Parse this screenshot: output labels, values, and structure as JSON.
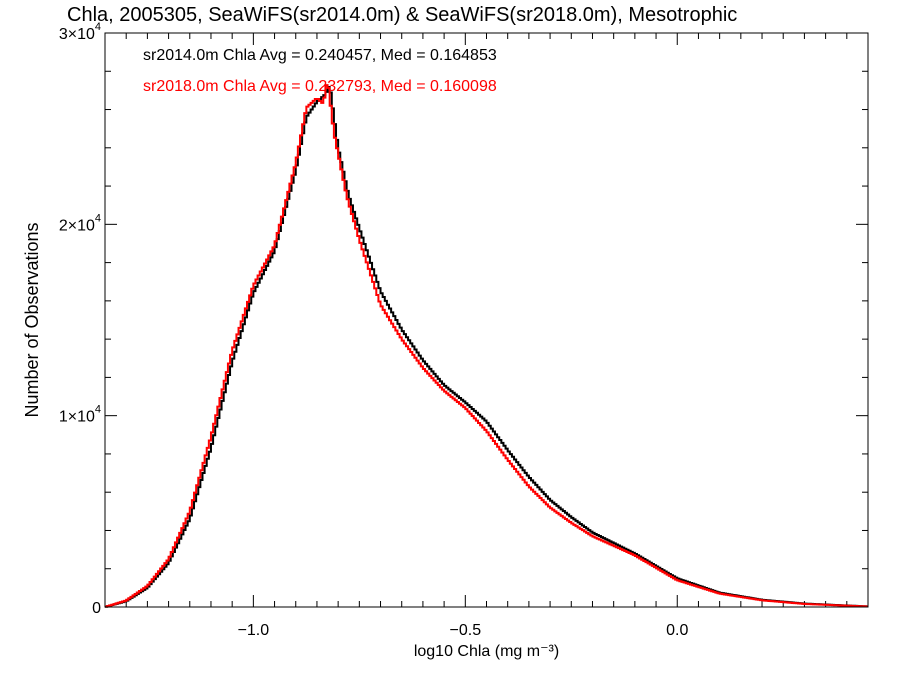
{
  "chart_data": {
    "type": "line",
    "title": "Chla, 2005305, SeaWiFS(sr2014.0m) & SeaWiFS(sr2018.0m), Mesotrophic",
    "xlabel": "log10 Chla (mg m⁻³)",
    "ylabel": "Number of Observations",
    "xlim": [
      -1.35,
      0.45
    ],
    "ylim": [
      0,
      30000
    ],
    "x_ticks": [
      {
        "value": -1.0,
        "label": "−1.0"
      },
      {
        "value": -0.5,
        "label": "−0.5"
      },
      {
        "value": 0.0,
        "label": "0.0"
      }
    ],
    "y_ticks": [
      {
        "value": 0,
        "mant": "0",
        "exp": ""
      },
      {
        "value": 10000,
        "mant": "1×10",
        "exp": "4"
      },
      {
        "value": 20000,
        "mant": "2×10",
        "exp": "4"
      },
      {
        "value": 30000,
        "mant": "3×10",
        "exp": "4"
      }
    ],
    "annotations": [
      {
        "text": "sr2014.0m Chla Avg = 0.240457, Med = 0.164853",
        "color": "#000000"
      },
      {
        "text": "sr2018.0m Chla Avg = 0.232793, Med = 0.160098",
        "color": "#ff0000"
      }
    ],
    "series": [
      {
        "color": "#000000",
        "x": [
          -1.35,
          -1.3,
          -1.25,
          -1.2,
          -1.15,
          -1.1,
          -1.05,
          -1.0,
          -0.95,
          -0.9,
          -0.875,
          -0.85,
          -0.83,
          -0.82,
          -0.8,
          -0.775,
          -0.75,
          -0.7,
          -0.65,
          -0.6,
          -0.55,
          -0.5,
          -0.45,
          -0.4,
          -0.35,
          -0.3,
          -0.25,
          -0.2,
          -0.1,
          0.0,
          0.1,
          0.2,
          0.3,
          0.45
        ],
        "y": [
          0,
          300,
          1000,
          2300,
          4600,
          8300,
          12800,
          16400,
          18600,
          22800,
          25600,
          26400,
          26800,
          27300,
          24000,
          21500,
          19800,
          16500,
          14500,
          12900,
          11600,
          10700,
          9700,
          8200,
          6800,
          5600,
          4700,
          3900,
          2800,
          1500,
          750,
          380,
          180,
          30
        ]
      },
      {
        "color": "#ff0000",
        "x": [
          -1.35,
          -1.3,
          -1.25,
          -1.2,
          -1.15,
          -1.1,
          -1.05,
          -1.0,
          -0.95,
          -0.9,
          -0.875,
          -0.85,
          -0.835,
          -0.825,
          -0.81,
          -0.78,
          -0.75,
          -0.7,
          -0.65,
          -0.6,
          -0.55,
          -0.5,
          -0.45,
          -0.4,
          -0.35,
          -0.3,
          -0.25,
          -0.2,
          -0.1,
          0.0,
          0.1,
          0.2,
          0.3,
          0.45
        ],
        "y": [
          0,
          340,
          1100,
          2500,
          5000,
          8900,
          13400,
          16800,
          18900,
          23200,
          26100,
          26600,
          26300,
          27600,
          24800,
          21500,
          19200,
          15800,
          14000,
          12500,
          11300,
          10400,
          9200,
          7700,
          6300,
          5200,
          4400,
          3700,
          2700,
          1400,
          700,
          350,
          160,
          25
        ]
      }
    ]
  }
}
